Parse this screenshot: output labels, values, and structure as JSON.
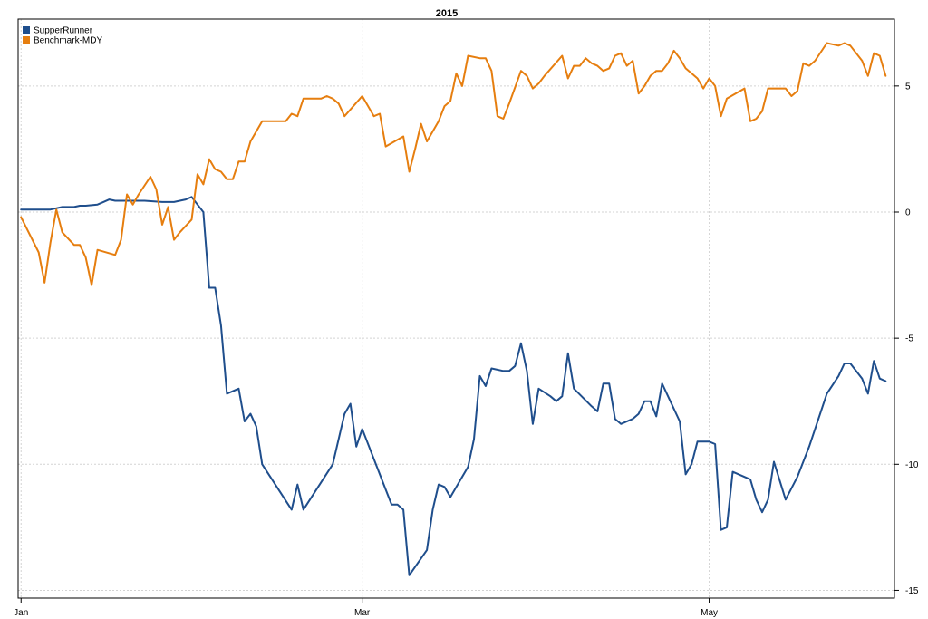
{
  "chart_data": {
    "type": "line",
    "title": "2015",
    "xlabel": "",
    "ylabel": "",
    "ylim": [
      -15,
      7.5
    ],
    "y_ticks": [
      5,
      0,
      -5,
      -10,
      -15
    ],
    "y_axis_side": "right",
    "x_ticks": [
      {
        "label": "Jan",
        "x": 0
      },
      {
        "label": "Mar",
        "x": 58
      },
      {
        "label": "May",
        "x": 117
      }
    ],
    "xlim": [
      -0.5,
      148.5
    ],
    "grid": true,
    "legend_position": "top-left",
    "series": [
      {
        "name": "SupperRunner",
        "color": "#1f4e8c",
        "points": [
          [
            0,
            0.1
          ],
          [
            5,
            0.1
          ],
          [
            7,
            0.2
          ],
          [
            9,
            0.2
          ],
          [
            10,
            0.25
          ],
          [
            11,
            0.25
          ],
          [
            13,
            0.3
          ],
          [
            14,
            0.4
          ],
          [
            15,
            0.5
          ],
          [
            16,
            0.45
          ],
          [
            18,
            0.45
          ],
          [
            21,
            0.45
          ],
          [
            24,
            0.4
          ],
          [
            26,
            0.4
          ],
          [
            27,
            0.45
          ],
          [
            28,
            0.5
          ],
          [
            29,
            0.6
          ],
          [
            30,
            0.3
          ],
          [
            31,
            0.0
          ],
          [
            32,
            -3.0
          ],
          [
            33,
            -3.0
          ],
          [
            34,
            -4.5
          ],
          [
            35,
            -7.2
          ],
          [
            37,
            -7.0
          ],
          [
            38,
            -8.3
          ],
          [
            39,
            -8.0
          ],
          [
            40,
            -8.5
          ],
          [
            41,
            -10.0
          ],
          [
            46,
            -11.8
          ],
          [
            47,
            -10.8
          ],
          [
            48,
            -11.8
          ],
          [
            53,
            -10.0
          ],
          [
            55,
            -8.0
          ],
          [
            56,
            -7.6
          ],
          [
            57,
            -9.3
          ],
          [
            58,
            -8.6
          ],
          [
            62,
            -11.0
          ],
          [
            63,
            -11.6
          ],
          [
            64,
            -11.6
          ],
          [
            65,
            -11.8
          ],
          [
            66,
            -14.4
          ],
          [
            69,
            -13.4
          ],
          [
            70,
            -11.8
          ],
          [
            71,
            -10.8
          ],
          [
            72,
            -10.9
          ],
          [
            73,
            -11.3
          ],
          [
            76,
            -10.1
          ],
          [
            77,
            -9.0
          ],
          [
            78,
            -6.5
          ],
          [
            79,
            -6.9
          ],
          [
            80,
            -6.2
          ],
          [
            82,
            -6.3
          ],
          [
            83,
            -6.3
          ],
          [
            84,
            -6.1
          ],
          [
            85,
            -5.2
          ],
          [
            86,
            -6.3
          ],
          [
            87,
            -8.4
          ],
          [
            88,
            -7.0
          ],
          [
            90,
            -7.3
          ],
          [
            91,
            -7.5
          ],
          [
            92,
            -7.3
          ],
          [
            93,
            -5.6
          ],
          [
            94,
            -7.0
          ],
          [
            97,
            -7.7
          ],
          [
            98,
            -7.9
          ],
          [
            99,
            -6.8
          ],
          [
            100,
            -6.8
          ],
          [
            101,
            -8.2
          ],
          [
            102,
            -8.4
          ],
          [
            104,
            -8.2
          ],
          [
            105,
            -8.0
          ],
          [
            106,
            -7.5
          ],
          [
            107,
            -7.5
          ],
          [
            108,
            -8.1
          ],
          [
            109,
            -6.8
          ],
          [
            112,
            -8.3
          ],
          [
            113,
            -10.4
          ],
          [
            114,
            -10.0
          ],
          [
            115,
            -9.1
          ],
          [
            117,
            -9.1
          ],
          [
            118,
            -9.2
          ],
          [
            119,
            -12.6
          ],
          [
            120,
            -12.5
          ],
          [
            121,
            -10.3
          ],
          [
            123,
            -10.5
          ],
          [
            124,
            -10.6
          ],
          [
            125,
            -11.4
          ],
          [
            126,
            -11.9
          ],
          [
            127,
            -11.4
          ],
          [
            128,
            -9.9
          ],
          [
            130,
            -11.4
          ],
          [
            132,
            -10.5
          ],
          [
            134,
            -9.3
          ],
          [
            137,
            -7.2
          ],
          [
            139,
            -6.5
          ],
          [
            140,
            -6.0
          ],
          [
            141,
            -6.0
          ],
          [
            143,
            -6.6
          ],
          [
            144,
            -7.2
          ],
          [
            145,
            -5.9
          ],
          [
            146,
            -6.6
          ],
          [
            147,
            -6.7
          ]
        ]
      },
      {
        "name": "Benchmark-MDY",
        "color": "#e67e0f",
        "points": [
          [
            0,
            -0.2
          ],
          [
            3,
            -1.6
          ],
          [
            4,
            -2.8
          ],
          [
            5,
            -1.2
          ],
          [
            6,
            0.1
          ],
          [
            7,
            -0.8
          ],
          [
            9,
            -1.3
          ],
          [
            10,
            -1.3
          ],
          [
            11,
            -1.8
          ],
          [
            12,
            -2.9
          ],
          [
            13,
            -1.5
          ],
          [
            16,
            -1.7
          ],
          [
            17,
            -1.1
          ],
          [
            18,
            0.7
          ],
          [
            19,
            0.3
          ],
          [
            20,
            0.7
          ],
          [
            22,
            1.4
          ],
          [
            23,
            0.9
          ],
          [
            24,
            -0.5
          ],
          [
            25,
            0.2
          ],
          [
            26,
            -1.1
          ],
          [
            27,
            -0.8
          ],
          [
            29,
            -0.3
          ],
          [
            30,
            1.5
          ],
          [
            31,
            1.1
          ],
          [
            32,
            2.1
          ],
          [
            33,
            1.7
          ],
          [
            34,
            1.6
          ],
          [
            35,
            1.3
          ],
          [
            36,
            1.3
          ],
          [
            37,
            2.0
          ],
          [
            38,
            2.0
          ],
          [
            39,
            2.8
          ],
          [
            41,
            3.6
          ],
          [
            45,
            3.6
          ],
          [
            46,
            3.9
          ],
          [
            47,
            3.8
          ],
          [
            48,
            4.5
          ],
          [
            51,
            4.5
          ],
          [
            52,
            4.6
          ],
          [
            53,
            4.5
          ],
          [
            54,
            4.3
          ],
          [
            55,
            3.8
          ],
          [
            58,
            4.6
          ],
          [
            60,
            3.8
          ],
          [
            61,
            3.9
          ],
          [
            62,
            2.6
          ],
          [
            65,
            3.0
          ],
          [
            66,
            1.6
          ],
          [
            67,
            2.5
          ],
          [
            68,
            3.5
          ],
          [
            69,
            2.8
          ],
          [
            71,
            3.6
          ],
          [
            72,
            4.2
          ],
          [
            73,
            4.4
          ],
          [
            74,
            5.5
          ],
          [
            75,
            5.0
          ],
          [
            76,
            6.2
          ],
          [
            78,
            6.1
          ],
          [
            79,
            6.1
          ],
          [
            80,
            5.6
          ],
          [
            81,
            3.8
          ],
          [
            82,
            3.7
          ],
          [
            83,
            4.3
          ],
          [
            85,
            5.6
          ],
          [
            86,
            5.4
          ],
          [
            87,
            4.9
          ],
          [
            88,
            5.1
          ],
          [
            89,
            5.4
          ],
          [
            92,
            6.2
          ],
          [
            93,
            5.3
          ],
          [
            94,
            5.8
          ],
          [
            95,
            5.8
          ],
          [
            96,
            6.1
          ],
          [
            97,
            5.9
          ],
          [
            98,
            5.8
          ],
          [
            99,
            5.6
          ],
          [
            100,
            5.7
          ],
          [
            101,
            6.2
          ],
          [
            102,
            6.3
          ],
          [
            103,
            5.8
          ],
          [
            104,
            6.0
          ],
          [
            105,
            4.7
          ],
          [
            106,
            5.0
          ],
          [
            107,
            5.4
          ],
          [
            108,
            5.6
          ],
          [
            109,
            5.6
          ],
          [
            110,
            5.9
          ],
          [
            111,
            6.4
          ],
          [
            112,
            6.1
          ],
          [
            113,
            5.7
          ],
          [
            114,
            5.5
          ],
          [
            115,
            5.3
          ],
          [
            116,
            4.9
          ],
          [
            117,
            5.3
          ],
          [
            118,
            5.0
          ],
          [
            119,
            3.8
          ],
          [
            120,
            4.5
          ],
          [
            123,
            4.9
          ],
          [
            124,
            3.6
          ],
          [
            125,
            3.7
          ],
          [
            126,
            4.0
          ],
          [
            127,
            4.9
          ],
          [
            128,
            4.9
          ],
          [
            130,
            4.9
          ],
          [
            131,
            4.6
          ],
          [
            132,
            4.8
          ],
          [
            133,
            5.9
          ],
          [
            134,
            5.8
          ],
          [
            135,
            6.0
          ],
          [
            137,
            6.7
          ],
          [
            139,
            6.6
          ],
          [
            140,
            6.7
          ],
          [
            141,
            6.6
          ],
          [
            142,
            6.3
          ],
          [
            143,
            6.0
          ],
          [
            144,
            5.4
          ],
          [
            145,
            6.3
          ],
          [
            146,
            6.2
          ],
          [
            147,
            5.4
          ]
        ]
      }
    ]
  }
}
